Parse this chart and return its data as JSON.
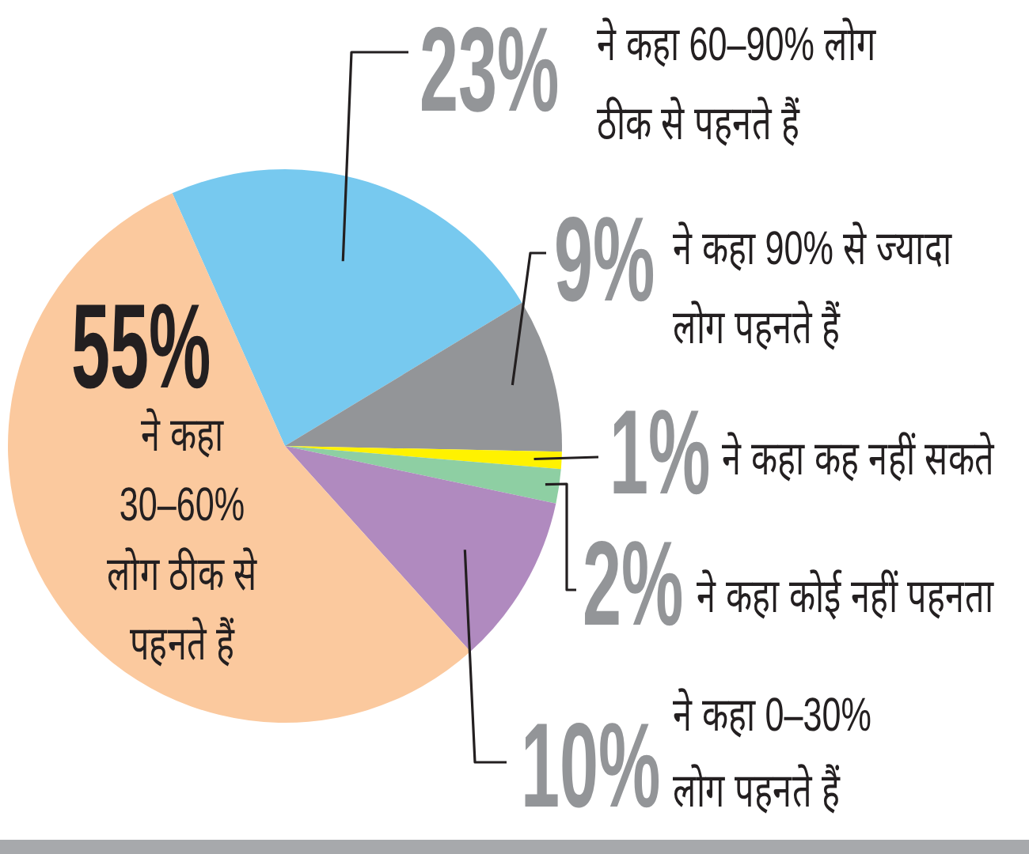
{
  "chart_data": {
    "type": "pie",
    "categories": [
      "ने कहा 60–90% लोग ठीक से पहनते हैं",
      "ने कहा 90% से ज्यादा लोग पहनते हैं",
      "ने कहा कह नहीं सकते",
      "ने कहा कोई नहीं पहनता",
      "ने कहा 0–30% लोग पहनते हैं",
      "ने कहा 30–60% लोग ठीक से पहनते हैं"
    ],
    "values": [
      23,
      9,
      1,
      2,
      10,
      55
    ],
    "colors": [
      "#77c9ef",
      "#939598",
      "#fff200",
      "#8ecfa3",
      "#b08abf",
      "#fbc99e"
    ],
    "value_labels": [
      "23%",
      "9%",
      "1%",
      "2%",
      "10%",
      "55%"
    ]
  }
}
